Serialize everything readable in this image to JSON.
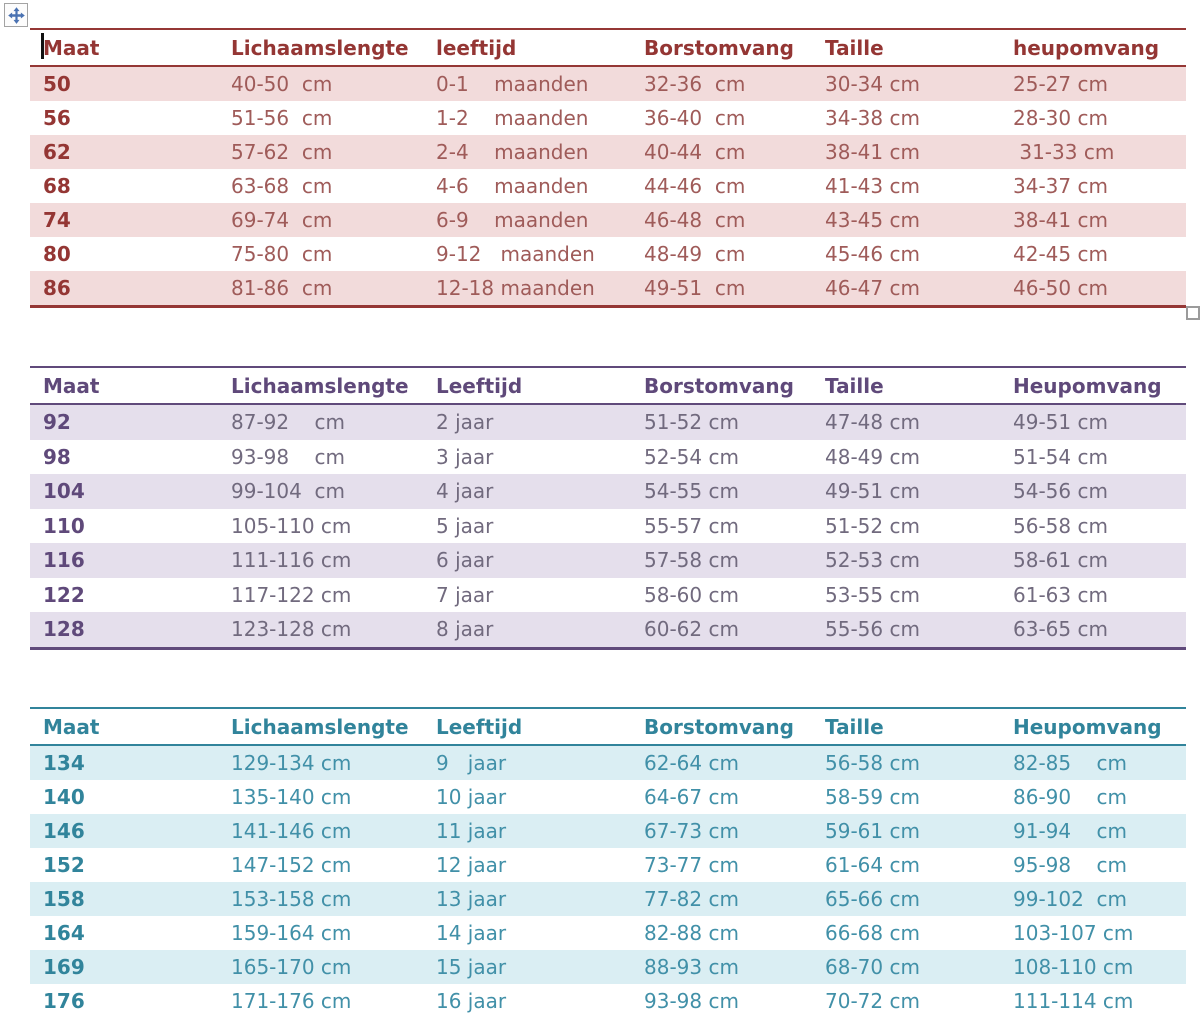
{
  "editor": {
    "move_handle_icon": "table-move-icon",
    "resize_handle_icon": "table-resize-icon",
    "caret": "text-cursor"
  },
  "tables": [
    {
      "name": "baby-sizes",
      "theme": {
        "text_strong": "#943634",
        "text_data": "#9f5b59",
        "band_fill": "#f2dbdb",
        "border": "#953735"
      },
      "headers": [
        "Maat",
        "Lichaamslengte",
        "leeftijd",
        "Borstomvang",
        "Taille",
        "heupomvang"
      ],
      "rows": [
        [
          "50",
          "40-50  cm",
          "0-1    maanden",
          "32-36  cm",
          "30-34 cm",
          "25-27 cm"
        ],
        [
          "56",
          "51-56  cm",
          "1-2    maanden",
          "36-40  cm",
          "34-38 cm",
          "28-30 cm"
        ],
        [
          "62",
          "57-62  cm",
          "2-4    maanden",
          "40-44  cm",
          "38-41 cm",
          " 31-33 cm"
        ],
        [
          "68",
          "63-68  cm",
          "4-6    maanden",
          "44-46  cm",
          "41-43 cm",
          "34-37 cm"
        ],
        [
          "74",
          "69-74  cm",
          "6-9    maanden",
          "46-48  cm",
          "43-45 cm",
          "38-41 cm"
        ],
        [
          "80",
          "75-80  cm",
          "9-12   maanden",
          "48-49  cm",
          "45-46 cm",
          "42-45 cm"
        ],
        [
          "86",
          "81-86  cm",
          "12-18 maanden",
          "49-51  cm",
          "46-47 cm",
          "46-50 cm"
        ]
      ]
    },
    {
      "name": "toddler-sizes",
      "theme": {
        "text_strong": "#5f497a",
        "text_data": "#716a7e",
        "band_fill": "#e5dfec",
        "border": "#604a7b"
      },
      "headers": [
        "Maat",
        "Lichaamslengte",
        "Leeftijd",
        "Borstomvang",
        "Taille",
        "Heupomvang"
      ],
      "rows": [
        [
          "92",
          "87-92    cm",
          "2 jaar",
          "51-52 cm",
          "47-48 cm",
          "49-51 cm"
        ],
        [
          "98",
          "93-98    cm",
          "3 jaar",
          "52-54 cm",
          "48-49 cm",
          "51-54 cm"
        ],
        [
          "104",
          "99-104  cm",
          "4 jaar",
          "54-55 cm",
          "49-51 cm",
          "54-56 cm"
        ],
        [
          "110",
          "105-110 cm",
          "5 jaar",
          "55-57 cm",
          "51-52 cm",
          "56-58 cm"
        ],
        [
          "116",
          "111-116 cm",
          "6 jaar",
          "57-58 cm",
          "52-53 cm",
          "58-61 cm"
        ],
        [
          "122",
          "117-122 cm",
          "7 jaar",
          "58-60 cm",
          "53-55 cm",
          "61-63 cm"
        ],
        [
          "128",
          "123-128 cm",
          "8 jaar",
          "60-62 cm",
          "55-56 cm",
          "63-65 cm"
        ]
      ]
    },
    {
      "name": "kids-sizes",
      "theme": {
        "text_strong": "#31849b",
        "text_data": "#4190a8",
        "band_fill": "#daeef3",
        "border": "#31849b"
      },
      "headers": [
        "Maat",
        "Lichaamslengte",
        "Leeftijd",
        "Borstomvang",
        "Taille",
        "Heupomvang"
      ],
      "rows": [
        [
          "134",
          "129-134 cm",
          "9   jaar",
          "62-64 cm",
          "56-58 cm",
          "82-85    cm"
        ],
        [
          "140",
          "135-140 cm",
          "10 jaar",
          "64-67 cm",
          "58-59 cm",
          "86-90    cm"
        ],
        [
          "146",
          "141-146 cm",
          "11 jaar",
          "67-73 cm",
          "59-61 cm",
          "91-94    cm"
        ],
        [
          "152",
          "147-152 cm",
          "12 jaar",
          "73-77 cm",
          "61-64 cm",
          "95-98    cm"
        ],
        [
          "158",
          "153-158 cm",
          "13 jaar",
          "77-82 cm",
          "65-66 cm",
          "99-102  cm"
        ],
        [
          "164",
          "159-164 cm",
          "14 jaar",
          "82-88 cm",
          "66-68 cm",
          "103-107 cm"
        ],
        [
          "169",
          "165-170 cm",
          "15 jaar",
          "88-93 cm",
          "68-70 cm",
          "108-110 cm"
        ],
        [
          "176",
          "171-176 cm",
          "16 jaar",
          "93-98 cm",
          "70-72 cm",
          "111-114 cm"
        ]
      ]
    }
  ]
}
